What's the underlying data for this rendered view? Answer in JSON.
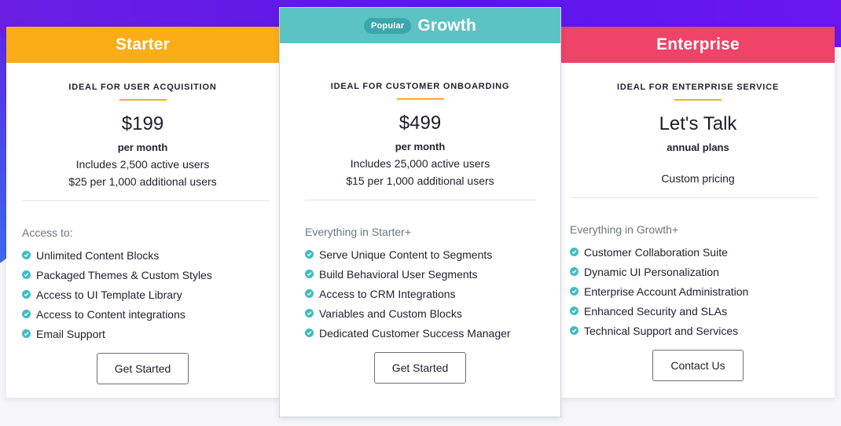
{
  "plans": [
    {
      "name": "Starter",
      "header_color": "#fbad18",
      "ideal_for": "IDEAL FOR USER ACQUISITION",
      "price": "$199",
      "period": "per month",
      "detail_1": "Includes 2,500 active users",
      "detail_2": "$25 per 1,000 additional users",
      "access_title": "Access to:",
      "features": [
        "Unlimited Content Blocks",
        "Packaged Themes & Custom Styles",
        "Access to UI Template Library",
        "Access to Content integrations",
        "Email Support"
      ],
      "cta": "Get Started"
    },
    {
      "name": "Growth",
      "badge": "Popular",
      "header_color": "#5bc3c4",
      "ideal_for": "IDEAL FOR CUSTOMER ONBOARDING",
      "price": "$499",
      "period": "per month",
      "detail_1": "Includes 25,000 active users",
      "detail_2": "$15 per 1,000 additional users",
      "access_title": "Everything in Starter+",
      "features": [
        "Serve Unique Content to Segments",
        "Build Behavioral User Segments",
        "Access to CRM Integrations",
        "Variables and Custom Blocks",
        "Dedicated Customer Success Manager"
      ],
      "cta": "Get Started"
    },
    {
      "name": "Enterprise",
      "header_color": "#ee4467",
      "ideal_for": "IDEAL FOR ENTERPRISE SERVICE",
      "price": "Let's Talk",
      "period": "annual plans",
      "detail_2": "Custom pricing",
      "access_title": "Everything in Growth+",
      "features": [
        "Customer Collaboration Suite",
        "Dynamic UI Personalization",
        "Enterprise Account Administration",
        "Enhanced Security and SLAs",
        "Technical Support and Services"
      ],
      "cta": "Contact Us"
    }
  ],
  "colors": {
    "accent_rule": "#fbad18",
    "check": "#40bcc0",
    "background_top": "#5a17ea"
  },
  "icons": {
    "feature_bullet": "check-circle-icon"
  }
}
